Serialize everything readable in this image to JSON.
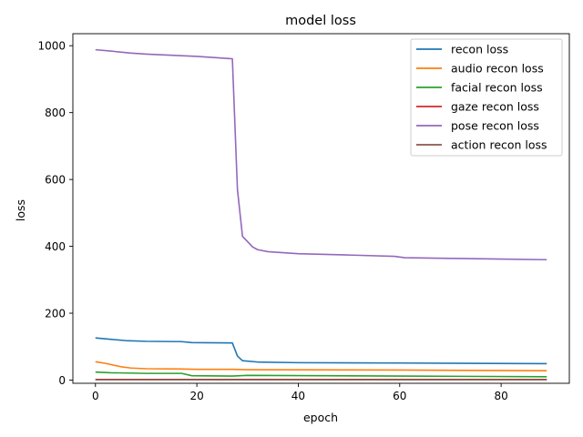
{
  "chart_data": {
    "type": "line",
    "title": "model loss",
    "xlabel": "epoch",
    "ylabel": "loss",
    "xlim": [
      -4.45,
      93.45
    ],
    "ylim": [
      -9.6,
      1036
    ],
    "xticks": [
      0,
      20,
      40,
      60,
      80
    ],
    "yticks": [
      0,
      200,
      400,
      600,
      800,
      1000
    ],
    "grid": false,
    "legend_position": "upper right",
    "series": [
      {
        "name": "recon loss",
        "color": "#1f77b4",
        "points": [
          [
            0,
            126
          ],
          [
            3,
            122
          ],
          [
            6,
            118
          ],
          [
            10,
            116
          ],
          [
            17,
            115
          ],
          [
            19,
            112
          ],
          [
            27,
            111
          ],
          [
            28,
            72
          ],
          [
            29,
            58
          ],
          [
            32,
            54
          ],
          [
            40,
            52
          ],
          [
            60,
            51
          ],
          [
            89,
            49
          ]
        ]
      },
      {
        "name": "audio recon loss",
        "color": "#ff7f0e",
        "points": [
          [
            0,
            55
          ],
          [
            2,
            50
          ],
          [
            5,
            40
          ],
          [
            7,
            36
          ],
          [
            10,
            34
          ],
          [
            17,
            33
          ],
          [
            20,
            32
          ],
          [
            27,
            32
          ],
          [
            30,
            31
          ],
          [
            60,
            30
          ],
          [
            89,
            28
          ]
        ]
      },
      {
        "name": "facial recon loss",
        "color": "#2ca02c",
        "points": [
          [
            0,
            24
          ],
          [
            3,
            22
          ],
          [
            10,
            20
          ],
          [
            17,
            20
          ],
          [
            19,
            13
          ],
          [
            27,
            12
          ],
          [
            30,
            14
          ],
          [
            60,
            12
          ],
          [
            89,
            10
          ]
        ]
      },
      {
        "name": "gaze recon loss",
        "color": "#d62728",
        "points": [
          [
            0,
            2
          ],
          [
            89,
            2
          ]
        ]
      },
      {
        "name": "pose recon loss",
        "color": "#9467bd",
        "points": [
          [
            0,
            988
          ],
          [
            3,
            984
          ],
          [
            7,
            978
          ],
          [
            10,
            975
          ],
          [
            20,
            968
          ],
          [
            27,
            961
          ],
          [
            28,
            570
          ],
          [
            29,
            430
          ],
          [
            31,
            398
          ],
          [
            32,
            390
          ],
          [
            34,
            384
          ],
          [
            40,
            378
          ],
          [
            50,
            374
          ],
          [
            59,
            370
          ],
          [
            61,
            366
          ],
          [
            70,
            364
          ],
          [
            80,
            362
          ],
          [
            89,
            360
          ]
        ]
      },
      {
        "name": "action recon loss",
        "color": "#8c564b",
        "points": [
          [
            0,
            1
          ],
          [
            89,
            1
          ]
        ]
      }
    ]
  }
}
